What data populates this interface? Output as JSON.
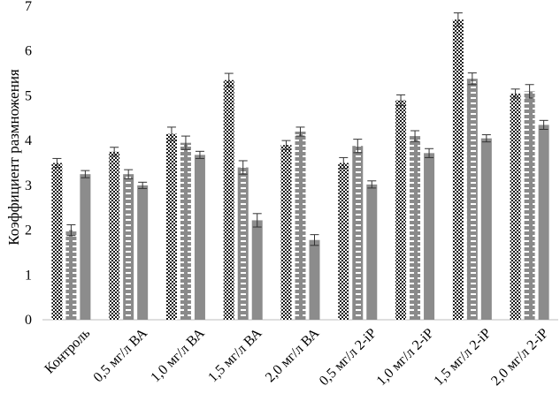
{
  "chart_data": {
    "type": "bar",
    "ylabel": "Коэффициент размножения",
    "xlabel": "",
    "ylim": [
      0,
      7
    ],
    "yticks": [
      0,
      1,
      2,
      3,
      4,
      5,
      6,
      7
    ],
    "grid": false,
    "legend": "none",
    "categories": [
      "Контроль",
      "0,5 мг/л ВА",
      "1,0 мг/л ВА",
      "1,5 мг/л ВА",
      "2,0 мг/л ВА",
      "0,5 мг/л 2-iP",
      "1,0 мг/л 2-iP",
      "1,5 мг/л 2-iP",
      "2,0 мг/л 2-iP"
    ],
    "series": [
      {
        "pattern": "checker",
        "color": "#333333",
        "values": [
          3.5,
          3.75,
          4.15,
          5.35,
          3.9,
          3.5,
          4.9,
          6.7,
          5.05
        ],
        "errors": [
          0.1,
          0.1,
          0.15,
          0.15,
          0.1,
          0.12,
          0.12,
          0.15,
          0.1
        ]
      },
      {
        "pattern": "dashed",
        "color": "#8a8a8a",
        "values": [
          2.0,
          3.25,
          3.95,
          3.4,
          4.2,
          3.88,
          4.1,
          5.38,
          5.1
        ],
        "errors": [
          0.12,
          0.1,
          0.15,
          0.15,
          0.1,
          0.15,
          0.12,
          0.13,
          0.15
        ]
      },
      {
        "pattern": "solid",
        "color": "#8c8c8c",
        "values": [
          3.25,
          3.0,
          3.68,
          2.22,
          1.78,
          3.02,
          3.72,
          4.05,
          4.35
        ],
        "errors": [
          0.08,
          0.07,
          0.08,
          0.15,
          0.12,
          0.08,
          0.1,
          0.08,
          0.1
        ]
      }
    ]
  }
}
